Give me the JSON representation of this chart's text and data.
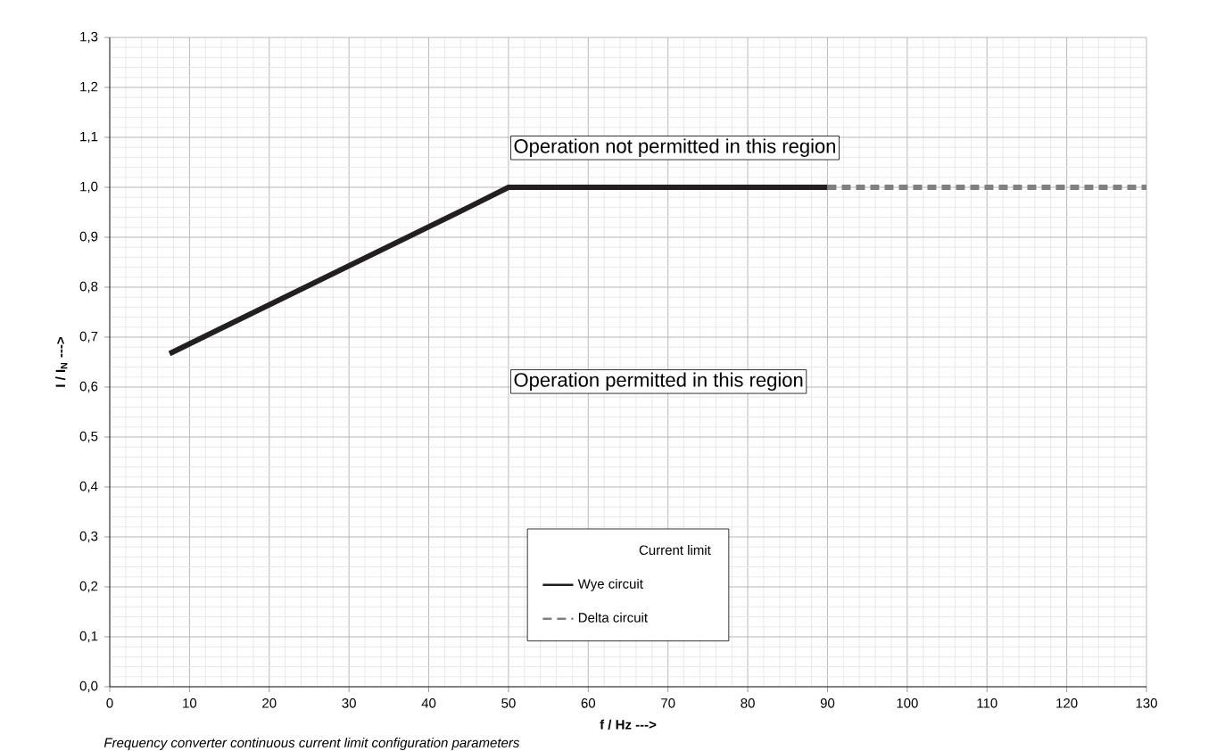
{
  "chart_data": {
    "type": "line",
    "xlabel": "f / Hz --->",
    "ylabel": "I / I$_{N}$ --->",
    "legend_title": "Current limit",
    "series": [
      {
        "name": "Wye circuit",
        "color": "#231f20",
        "line_style": "solid",
        "x": [
          7.5,
          45,
          50,
          90
        ],
        "values": [
          0.667,
          0.96,
          1.0,
          1.0
        ]
      },
      {
        "name": "Delta circuit",
        "color": "#808080",
        "line_style": "dashed",
        "x": [
          90,
          130
        ],
        "values": [
          1.0,
          1.0
        ]
      }
    ],
    "xlim": [
      0,
      130
    ],
    "xticks": [
      0,
      10,
      20,
      30,
      40,
      50,
      60,
      70,
      80,
      90,
      100,
      110,
      120,
      130
    ],
    "ylim": [
      0,
      1.3
    ],
    "yticks": [
      {
        "value": 0,
        "label": "0,0"
      },
      {
        "value": 0.1,
        "label": "0,1"
      },
      {
        "value": 0.2,
        "label": "0,2"
      },
      {
        "value": 0.3,
        "label": "0,3"
      },
      {
        "value": 0.4,
        "label": "0,4"
      },
      {
        "value": 0.5,
        "label": "0,5"
      },
      {
        "value": 0.6,
        "label": "0,6"
      },
      {
        "value": 0.7,
        "label": "0,7"
      },
      {
        "value": 0.8,
        "label": "0,8"
      },
      {
        "value": 0.9,
        "label": "0,9"
      },
      {
        "value": 1.0,
        "label": "1,0"
      },
      {
        "value": 1.1,
        "label": "1,1"
      },
      {
        "value": 1.2,
        "label": "1,2"
      },
      {
        "value": 1.3,
        "label": "1,3"
      }
    ],
    "grid": true,
    "legend": "bottom",
    "marker": "none",
    "annotations": [
      "Operation not permitted in this region",
      "Operation permitted in this region",
      "Frequency converter continuous current limit configuration parameters"
    ]
  }
}
